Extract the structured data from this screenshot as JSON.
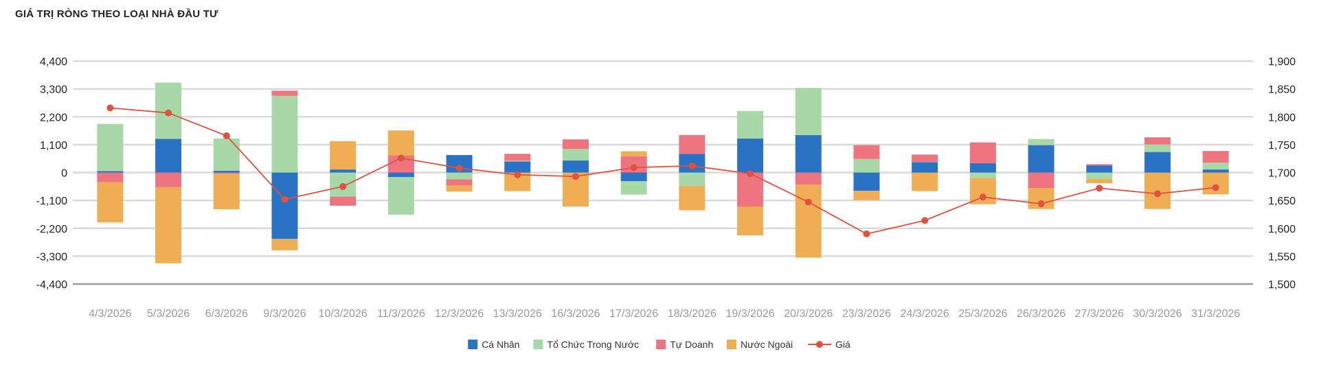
{
  "title": "GIÁ TRỊ RÒNG THEO LOẠI NHÀ ĐẦU TƯ",
  "chart_data": {
    "type": "bar",
    "stacked": true,
    "title": "GIÁ TRỊ RÒNG THEO LOẠI NHÀ ĐẦU TƯ",
    "categories": [
      "4/3/2026",
      "5/3/2026",
      "6/3/2026",
      "9/3/2026",
      "10/3/2026",
      "11/3/2026",
      "12/3/2026",
      "13/3/2026",
      "16/3/2026",
      "17/3/2026",
      "18/3/2026",
      "19/3/2026",
      "20/3/2026",
      "23/3/2026",
      "24/3/2026",
      "25/3/2026",
      "26/3/2026",
      "27/3/2026",
      "30/3/2026",
      "31/3/2026"
    ],
    "y_left": {
      "ylim": [
        -4400,
        4400
      ],
      "ticks": [
        4400,
        3300,
        2200,
        1100,
        0,
        -1100,
        -2200,
        -3300,
        -4400
      ],
      "tick_labels": [
        "4,400",
        "3,300",
        "2,200",
        "1,100",
        "0",
        "-1,100",
        "-2,200",
        "-3,300",
        "-4,400"
      ]
    },
    "y_right": {
      "ylim": [
        1500,
        1900
      ],
      "ticks": [
        1900,
        1850,
        1800,
        1750,
        1700,
        1650,
        1600,
        1550,
        1500
      ],
      "tick_labels": [
        "1,900",
        "1,850",
        "1,800",
        "1,750",
        "1,700",
        "1,650",
        "1,600",
        "1,550",
        "1,500"
      ]
    },
    "series": [
      {
        "name": "Cá Nhân",
        "type": "bar",
        "color": "#2a72c4",
        "values": [
          60,
          1330,
          70,
          -2620,
          120,
          -180,
          690,
          440,
          480,
          -340,
          740,
          1340,
          1480,
          -720,
          410,
          370,
          1080,
          280,
          810,
          120
        ]
      },
      {
        "name": "Tổ Chức Trong Nước",
        "type": "bar",
        "color": "#a8d8a8",
        "values": [
          1860,
          2220,
          1270,
          3030,
          -950,
          -1480,
          -270,
          30,
          450,
          -530,
          -530,
          1090,
          1860,
          540,
          10,
          -210,
          240,
          -260,
          300,
          270
        ]
      },
      {
        "name": "Tự Doanh",
        "type": "bar",
        "color": "#ee7480",
        "values": [
          -380,
          -580,
          -50,
          200,
          -360,
          680,
          -240,
          270,
          380,
          640,
          740,
          -1340,
          -480,
          540,
          290,
          820,
          -610,
          50,
          280,
          460
        ]
      },
      {
        "name": "Nước Ngoài",
        "type": "bar",
        "color": "#efae54",
        "values": [
          -1590,
          -3000,
          -1400,
          -450,
          1120,
          980,
          -240,
          -730,
          -1340,
          200,
          -960,
          -1140,
          -2880,
          -370,
          -730,
          -1040,
          -830,
          -160,
          -1440,
          -860
        ]
      },
      {
        "name": "Giá",
        "type": "line",
        "color": "#e0513f",
        "axis": "right",
        "values": [
          1816,
          1807,
          1766,
          1652,
          1675,
          1726,
          1708,
          1696,
          1693,
          1709,
          1712,
          1698,
          1647,
          1590,
          1614,
          1656,
          1644,
          1672,
          1662,
          1673
        ]
      }
    ],
    "legend_position": "bottom-center",
    "grid": true
  }
}
